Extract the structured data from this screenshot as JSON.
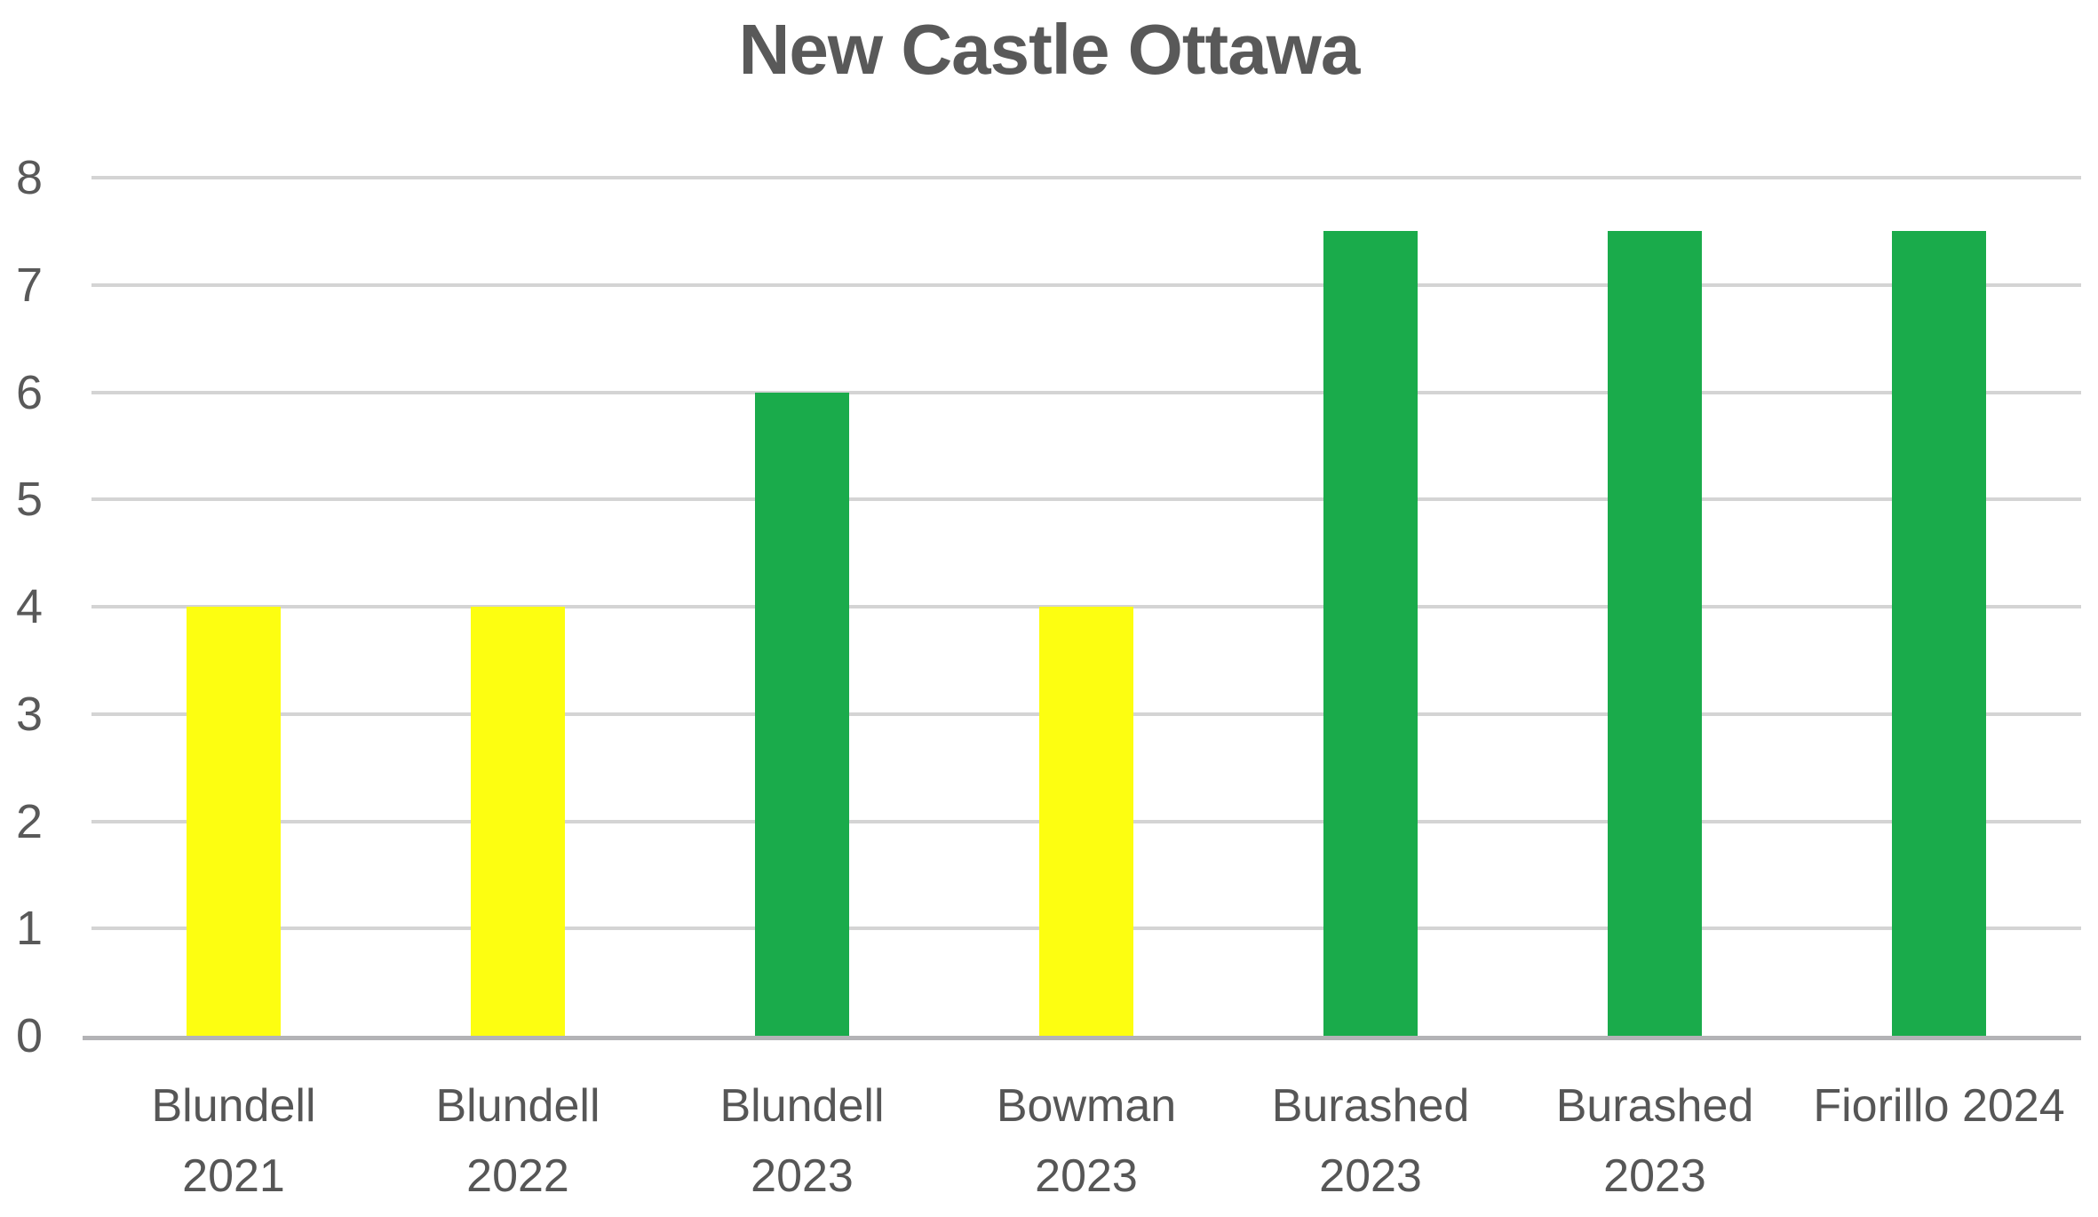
{
  "chart_data": {
    "type": "bar",
    "title": "New Castle Ottawa",
    "categories": [
      "Blundell 2021",
      "Blundell 2022",
      "Blundell 2023",
      "Bowman 2023",
      "Burashed 2023",
      "Burashed 2023",
      "Fiorillo 2024"
    ],
    "category_display_lines": [
      [
        "Blundell",
        "2021"
      ],
      [
        "Blundell",
        "2022"
      ],
      [
        "Blundell",
        "2023"
      ],
      [
        "Bowman",
        "2023"
      ],
      [
        "Burashed",
        "2023"
      ],
      [
        "Burashed",
        "2023"
      ],
      [
        "Fiorillo 2024"
      ]
    ],
    "values": [
      4,
      4,
      6,
      4,
      7.5,
      7.5,
      7.5
    ],
    "bar_colors": [
      "#fdfe11",
      "#fdfe11",
      "#1aab4b",
      "#fdfe11",
      "#1aab4b",
      "#1aab4b",
      "#1aab4b"
    ],
    "yticks": [
      0,
      1,
      2,
      3,
      4,
      5,
      6,
      7,
      8
    ],
    "ylim": [
      0,
      8
    ],
    "xlabel": "",
    "ylabel": "",
    "grid": true,
    "legend": "none",
    "colors": {
      "bar_yellow": "#fdfe11",
      "bar_green": "#1aab4b",
      "gridline": "#d4d4d4",
      "axis_line": "#b3b3b6",
      "text": "#595959"
    }
  }
}
